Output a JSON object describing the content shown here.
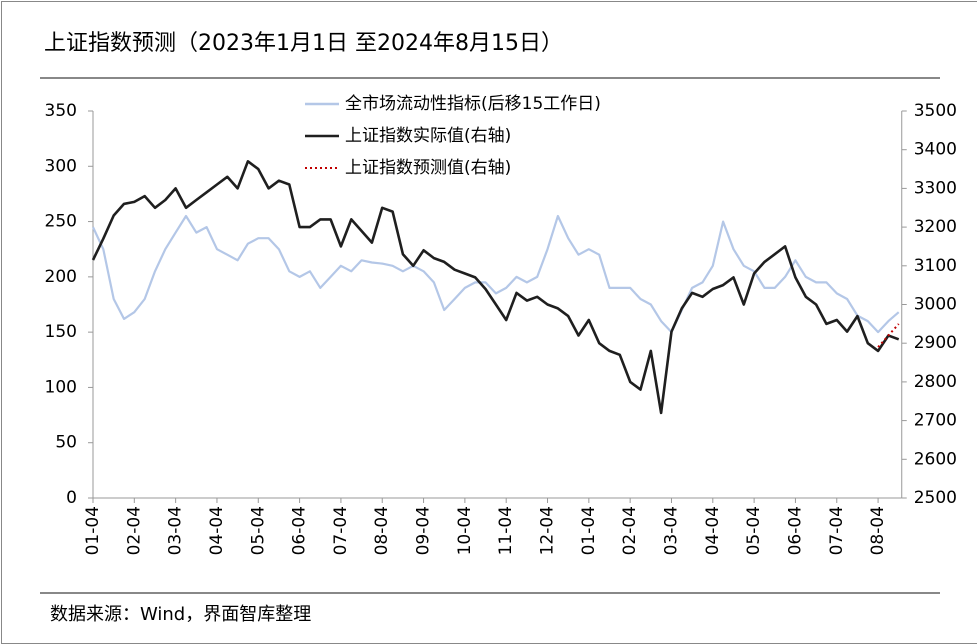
{
  "chart_data": {
    "type": "line",
    "title": "上证指数预测（2023年1月1日 至2024年8月15日）",
    "source": "数据来源：Wind，界面智库整理",
    "categories": [
      "01-04",
      null,
      null,
      null,
      "02-04",
      null,
      null,
      null,
      "03-04",
      null,
      null,
      null,
      "04-04",
      null,
      null,
      null,
      "05-04",
      null,
      null,
      null,
      "06-04",
      null,
      null,
      null,
      "07-04",
      null,
      null,
      null,
      "08-04",
      null,
      null,
      null,
      "09-04",
      null,
      null,
      null,
      "10-04",
      null,
      null,
      null,
      "11-04",
      null,
      null,
      null,
      "12-04",
      null,
      null,
      null,
      "01-04",
      null,
      null,
      null,
      "02-04",
      null,
      null,
      null,
      "03-04",
      null,
      null,
      null,
      "04-04",
      null,
      null,
      null,
      "05-04",
      null,
      null,
      null,
      "06-04",
      null,
      null,
      null,
      "07-04",
      null,
      null,
      null,
      "08-04",
      null,
      null
    ],
    "ylim": [
      0,
      350
    ],
    "yticks": [
      0,
      50,
      100,
      150,
      200,
      250,
      300,
      350
    ],
    "y2lim": [
      2500,
      3500
    ],
    "y2ticks": [
      2500,
      2600,
      2700,
      2800,
      2900,
      3000,
      3100,
      3200,
      3300,
      3400,
      3500
    ],
    "legend": "top",
    "series": [
      {
        "name": "全市场流动性指标(后移15工作日)",
        "color": "#b4c7e7",
        "style": "solid",
        "values": [
          245,
          225,
          180,
          162,
          168,
          180,
          205,
          225,
          240,
          255,
          240,
          245,
          225,
          220,
          215,
          230,
          235,
          235,
          225,
          205,
          200,
          205,
          190,
          200,
          210,
          205,
          215,
          213,
          212,
          210,
          205,
          210,
          205,
          195,
          170,
          180,
          190,
          195,
          195,
          185,
          190,
          200,
          195,
          200,
          225,
          255,
          235,
          220,
          225,
          220,
          190,
          190,
          190,
          180,
          175,
          160,
          150,
          170,
          190,
          195,
          210,
          250,
          225,
          210,
          205,
          190,
          190,
          200,
          215,
          200,
          195,
          195,
          185,
          180,
          165,
          160,
          150,
          160,
          168
        ]
      },
      {
        "name": "上证指数实际值(右轴)",
        "color": "#1f1f1f",
        "style": "solid",
        "axis": "y2",
        "values": [
          3115,
          3170,
          3230,
          3260,
          3265,
          3280,
          3250,
          3270,
          3300,
          3250,
          3270,
          3290,
          3310,
          3330,
          3300,
          3370,
          3350,
          3300,
          3320,
          3310,
          3200,
          3200,
          3220,
          3220,
          3150,
          3220,
          3190,
          3160,
          3250,
          3240,
          3130,
          3100,
          3140,
          3120,
          3110,
          3090,
          3080,
          3070,
          3040,
          3000,
          2960,
          3030,
          3010,
          3020,
          3000,
          2990,
          2970,
          2920,
          2960,
          2900,
          2880,
          2870,
          2800,
          2780,
          2880,
          2720,
          2930,
          2990,
          3030,
          3020,
          3040,
          3050,
          3070,
          3000,
          3080,
          3110,
          3130,
          3150,
          3070,
          3020,
          3000,
          2950,
          2960,
          2930,
          2970,
          2900,
          2880,
          2920,
          2910
        ]
      },
      {
        "name": "上证指数预测值(右轴)",
        "color": "#c00000",
        "style": "dotted",
        "axis": "y2",
        "values": [
          null,
          null,
          null,
          null,
          null,
          null,
          null,
          null,
          null,
          null,
          null,
          null,
          null,
          null,
          null,
          null,
          null,
          null,
          null,
          null,
          null,
          null,
          null,
          null,
          null,
          null,
          null,
          null,
          null,
          null,
          null,
          null,
          null,
          null,
          null,
          null,
          null,
          null,
          null,
          null,
          null,
          null,
          null,
          null,
          null,
          null,
          null,
          null,
          null,
          null,
          null,
          null,
          null,
          null,
          null,
          null,
          null,
          null,
          null,
          null,
          null,
          null,
          null,
          null,
          null,
          null,
          null,
          null,
          null,
          null,
          null,
          null,
          null,
          null,
          null,
          null,
          2890,
          2920,
          2950
        ]
      }
    ]
  }
}
